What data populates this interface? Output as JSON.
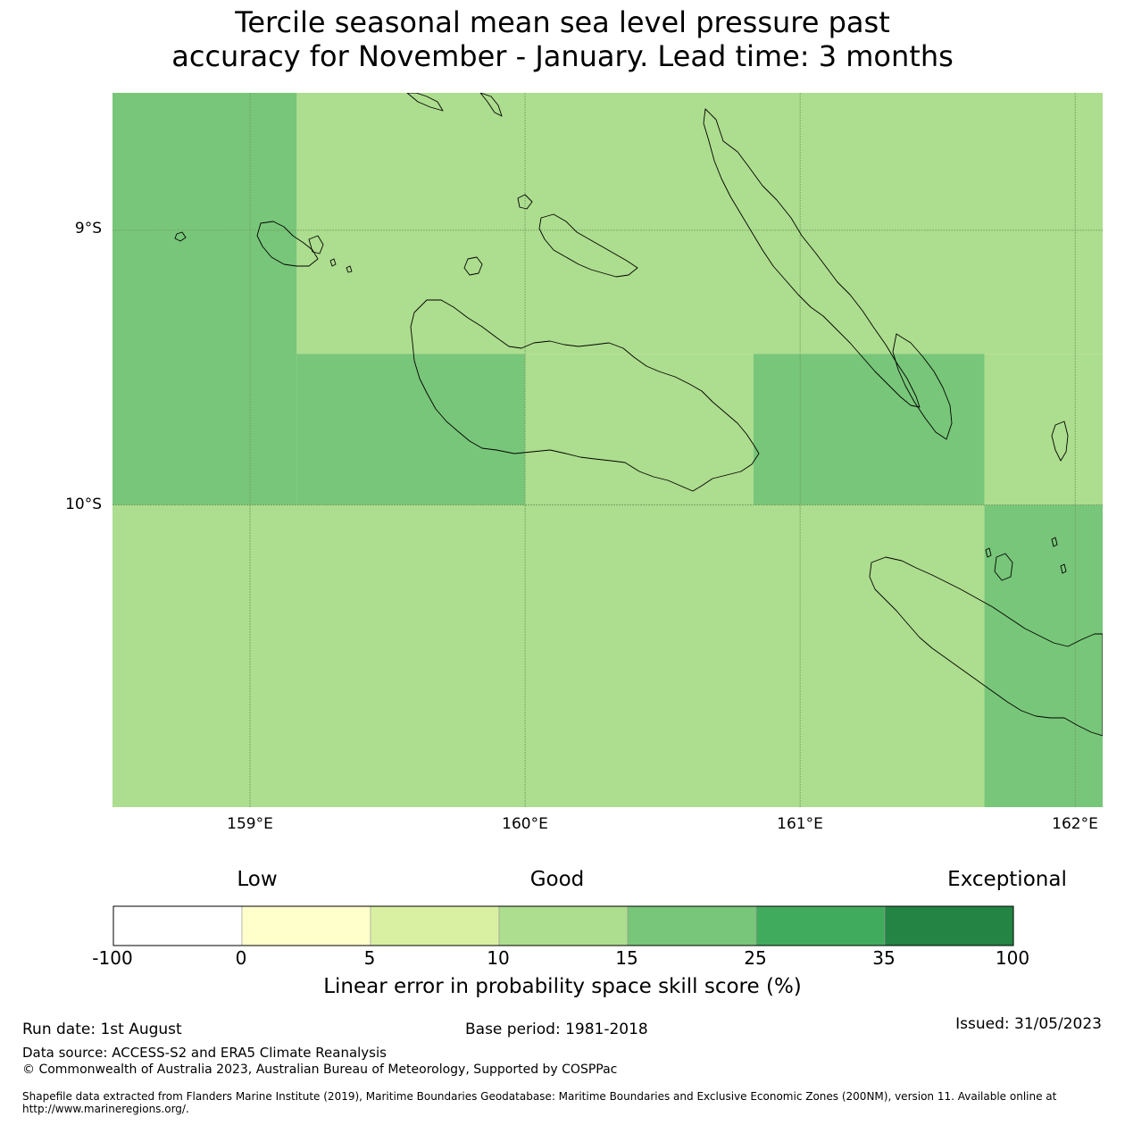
{
  "title": {
    "line1": "Tercile seasonal mean sea level pressure past",
    "line2": "accuracy for November - January. Lead time: 3 months"
  },
  "map": {
    "lon_range": [
      158.5,
      162.1
    ],
    "lat_range": [
      -11.1,
      -8.5
    ],
    "x_ticks": [
      "159°E",
      "160°E",
      "161°E",
      "162°E"
    ],
    "y_ticks": [
      "9°S",
      "10°S"
    ],
    "cell_colors": {
      "15-25": "#78c679",
      "10-15": "#addd8e"
    },
    "grid_cells": [
      {
        "lon": [
          158.5,
          159.17
        ],
        "lat": [
          -10.0,
          -8.5
        ],
        "category": "15-25"
      },
      {
        "lon": [
          159.17,
          160.0
        ],
        "lat": [
          -9.45,
          -8.5
        ],
        "category": "10-15"
      },
      {
        "lon": [
          159.17,
          160.0
        ],
        "lat": [
          -10.0,
          -9.45
        ],
        "category": "15-25"
      },
      {
        "lon": [
          160.0,
          162.1
        ],
        "lat": [
          -9.45,
          -8.5
        ],
        "category": "10-15"
      },
      {
        "lon": [
          160.0,
          160.83
        ],
        "lat": [
          -10.0,
          -9.45
        ],
        "category": "10-15"
      },
      {
        "lon": [
          160.83,
          161.67
        ],
        "lat": [
          -10.0,
          -9.45
        ],
        "category": "15-25"
      },
      {
        "lon": [
          161.67,
          162.1
        ],
        "lat": [
          -10.0,
          -9.45
        ],
        "category": "10-15"
      },
      {
        "lon": [
          158.5,
          161.67
        ],
        "lat": [
          -11.1,
          -10.0
        ],
        "category": "10-15"
      },
      {
        "lon": [
          161.67,
          162.1
        ],
        "lat": [
          -11.1,
          -10.0
        ],
        "category": "15-25"
      }
    ]
  },
  "legend": {
    "categories": [
      "Low",
      "Good",
      "Exceptional"
    ],
    "ticks": [
      "-100",
      "0",
      "5",
      "10",
      "15",
      "25",
      "35",
      "100"
    ],
    "colors": [
      "#ffffff",
      "#ffffcc",
      "#d9f0a3",
      "#addd8e",
      "#78c679",
      "#41ab5d",
      "#238443"
    ],
    "label": "Linear error in probability space skill score (%)"
  },
  "footer": {
    "run_date": "Run date: 1st August",
    "base_period": "Base period: 1981-2018",
    "issued": "Issued: 31/05/2023",
    "data_source": "Data source: ACCESS-S2 and ERA5 Climate Reanalysis",
    "copyright": "© Commonwealth of Australia 2023, Australian Bureau of Meteorology, Supported by COSPPac",
    "shapefile_line1": "Shapefile data extracted from Flanders Marine Institute (2019), Maritime Boundaries Geodatabase: Maritime Boundaries and Exclusive Economic Zones (200NM), version 11. Available online at",
    "shapefile_line2": "http://www.marineregions.org/."
  }
}
